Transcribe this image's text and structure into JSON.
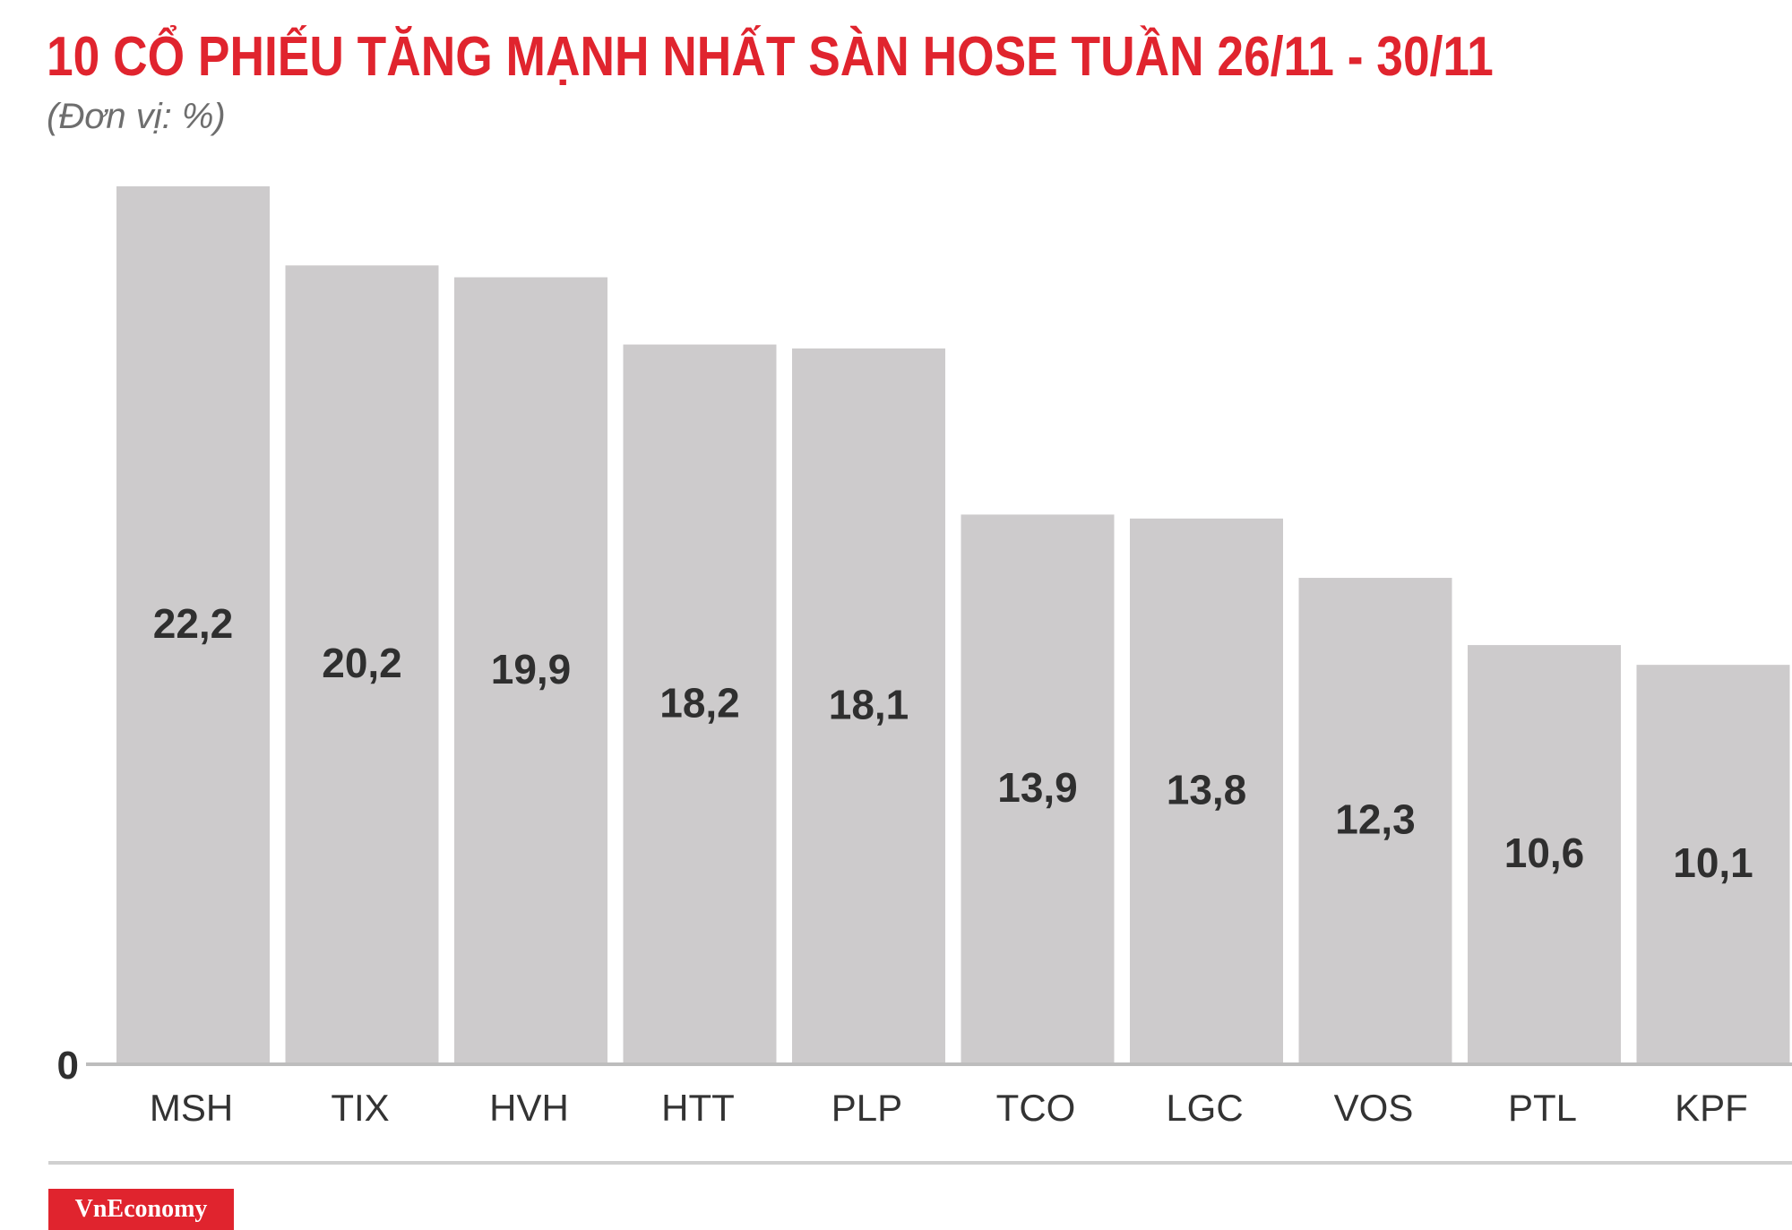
{
  "header": {
    "title": "10 CỔ PHIẾU TĂNG MẠNH NHẤT SÀN HOSE TUẦN 26/11 - 30/11",
    "subtitle": "(Đơn vị: %)"
  },
  "footer": {
    "brand": "VnEconomy"
  },
  "colors": {
    "title": "#e0242e",
    "bar": "#cdcbcc",
    "axis": "#bdbdbd",
    "value_label": "#2f2f2f",
    "category_label": "#333333",
    "brand_bg": "#e0242e"
  },
  "chart_data": {
    "type": "bar",
    "categories": [
      "MSH",
      "TIX",
      "HVH",
      "HTT",
      "PLP",
      "TCO",
      "LGC",
      "VOS",
      "PTL",
      "KPF"
    ],
    "values": [
      22.2,
      20.2,
      19.9,
      18.2,
      18.1,
      13.9,
      13.8,
      12.3,
      10.6,
      10.1
    ],
    "value_labels": [
      "22,2",
      "20,2",
      "19,9",
      "18,2",
      "18,1",
      "13,9",
      "13,8",
      "12,3",
      "10,6",
      "10,1"
    ],
    "title": "10 CỔ PHIẾU TĂNG MẠNH NHẤT SÀN HOSE TUẦN 26/11 - 30/11",
    "subtitle": "(Đơn vị: %)",
    "y_tick_labels": [
      "0"
    ],
    "ylim": [
      0,
      22.2
    ],
    "grid": false,
    "legend": "none"
  }
}
